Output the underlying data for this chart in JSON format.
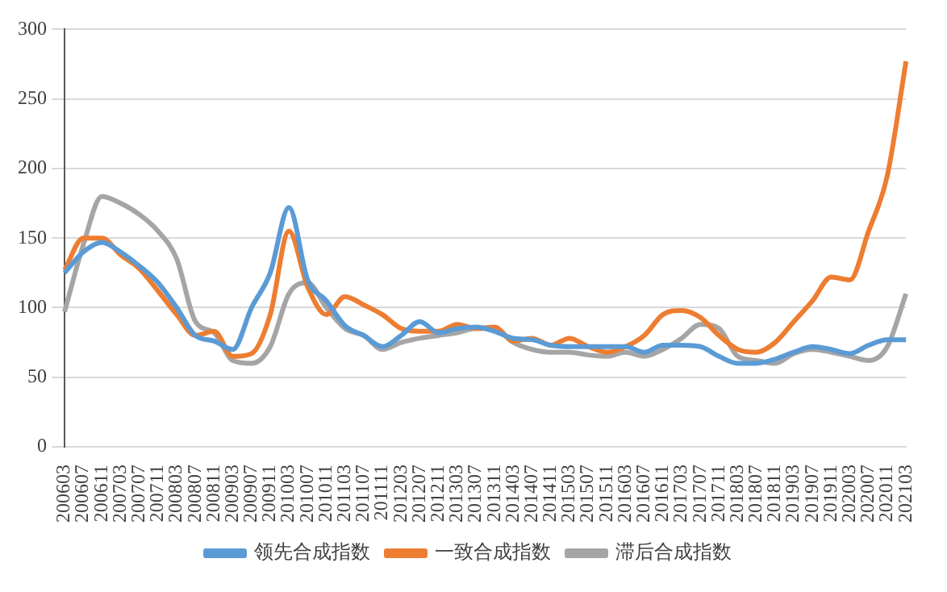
{
  "chart_data": {
    "type": "line",
    "categories": [
      "200603",
      "200607",
      "200611",
      "200703",
      "200707",
      "200711",
      "200803",
      "200807",
      "200811",
      "200903",
      "200907",
      "200911",
      "201003",
      "201007",
      "201011",
      "201103",
      "201107",
      "201111",
      "201203",
      "201207",
      "201211",
      "201303",
      "201307",
      "201311",
      "201403",
      "201407",
      "201411",
      "201503",
      "201507",
      "201511",
      "201603",
      "201607",
      "201611",
      "201703",
      "201707",
      "201711",
      "201803",
      "201807",
      "201811",
      "201903",
      "201907",
      "201911",
      "202003",
      "202007",
      "202011",
      "202103"
    ],
    "series": [
      {
        "name": "领先合成指数",
        "color": "#5b9bd5",
        "values": [
          125,
          140,
          147,
          140,
          130,
          118,
          100,
          80,
          76,
          70,
          100,
          125,
          172,
          120,
          105,
          87,
          80,
          72,
          80,
          90,
          82,
          85,
          86,
          83,
          78,
          77,
          73,
          72,
          72,
          72,
          72,
          68,
          73,
          73,
          72,
          65,
          60,
          60,
          63,
          68,
          72,
          70,
          67,
          73,
          77,
          77
        ]
      },
      {
        "name": "一致合成指数",
        "color": "#ed7d31",
        "values": [
          127,
          150,
          150,
          138,
          128,
          112,
          95,
          80,
          83,
          65,
          67,
          95,
          155,
          115,
          95,
          108,
          102,
          95,
          85,
          83,
          83,
          88,
          85,
          86,
          76,
          78,
          73,
          78,
          72,
          68,
          72,
          80,
          95,
          98,
          93,
          80,
          70,
          68,
          75,
          90,
          105,
          122,
          120,
          155,
          195,
          277
        ]
      },
      {
        "name": "滞后合成指数",
        "color": "#a5a5a5",
        "values": [
          97,
          145,
          180,
          175,
          167,
          155,
          135,
          90,
          82,
          62,
          60,
          72,
          110,
          118,
          100,
          85,
          80,
          70,
          75,
          78,
          80,
          82,
          85,
          85,
          75,
          70,
          68,
          68,
          66,
          65,
          68,
          65,
          70,
          78,
          88,
          85,
          65,
          62,
          60,
          67,
          70,
          68,
          65,
          62,
          72,
          110
        ]
      }
    ],
    "ylim": [
      0,
      300
    ],
    "yticks": [
      0,
      50,
      100,
      150,
      200,
      250,
      300
    ],
    "grid": "y",
    "legend": "bottom",
    "marker": "none",
    "line_style": "solid"
  }
}
